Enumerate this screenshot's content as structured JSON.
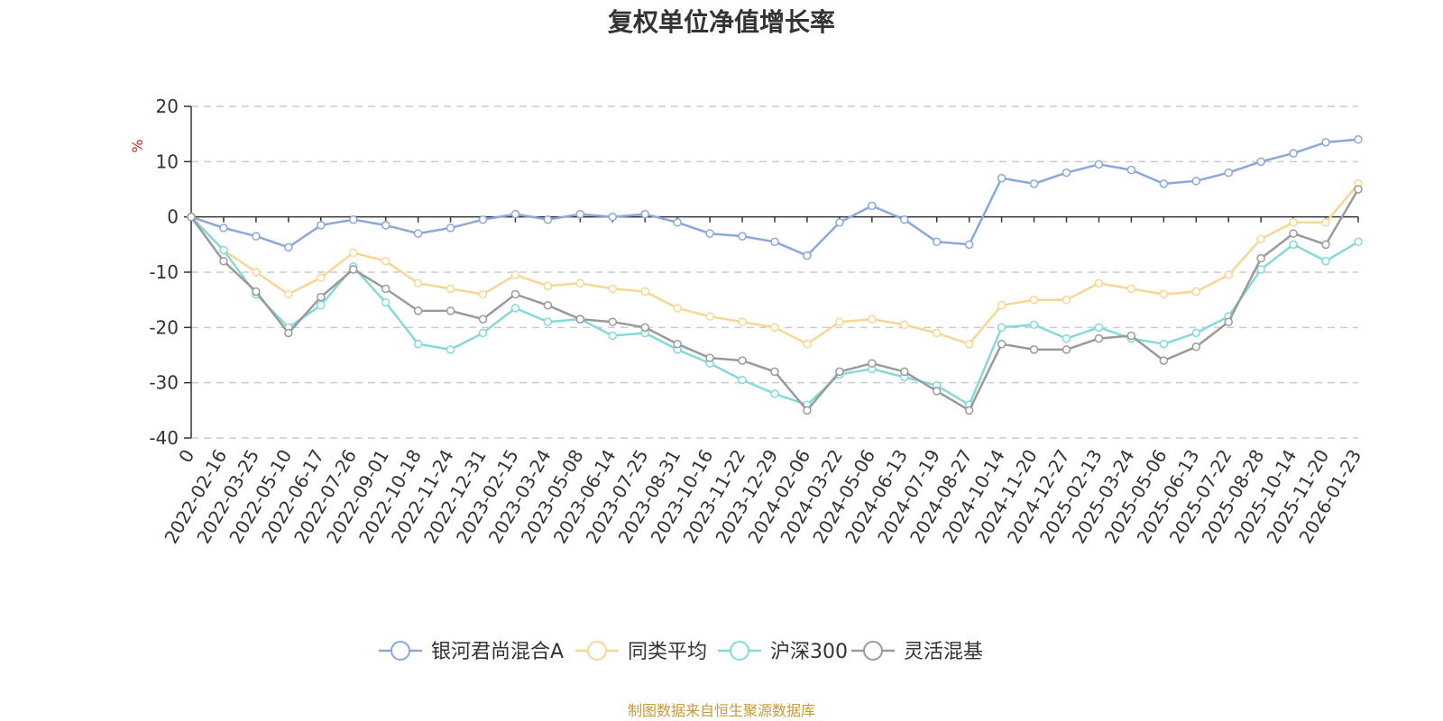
{
  "chart_data": {
    "type": "line",
    "title": "复权单位净值增长率",
    "ylabel": "%",
    "xlabel": "",
    "ylim": [
      -40,
      20
    ],
    "yticks": [
      20,
      10,
      0,
      -10,
      -20,
      -30,
      -40
    ],
    "grid": true,
    "legend_position": "bottom-center",
    "source": "制图数据来自恒生聚源数据库",
    "x": [
      "0",
      "2022-02-16",
      "2022-03-25",
      "2022-05-10",
      "2022-06-17",
      "2022-07-26",
      "2022-09-01",
      "2022-10-18",
      "2022-11-24",
      "2022-12-31",
      "2023-02-15",
      "2023-03-24",
      "2023-05-08",
      "2023-06-14",
      "2023-07-25",
      "2023-08-31",
      "2023-10-16",
      "2023-11-22",
      "2023-12-29",
      "2024-02-06",
      "2024-03-22",
      "2024-05-06",
      "2024-06-13",
      "2024-07-19",
      "2024-08-27",
      "2024-10-14",
      "2024-11-20",
      "2024-12-27",
      "2025-02-13",
      "2025-03-24",
      "2025-05-06",
      "2025-06-13",
      "2025-07-22",
      "2025-08-28",
      "2025-10-14",
      "2025-11-20",
      "2026-01-23"
    ],
    "series": [
      {
        "name": "银河君尚混合A",
        "color": "#8aa8d8",
        "values": [
          0,
          -2,
          -3.5,
          -5.5,
          -1.5,
          -0.5,
          -1.5,
          -3,
          -2,
          -0.5,
          0.5,
          -0.5,
          0.5,
          0,
          0.5,
          -1,
          -3,
          -3.5,
          -4.5,
          -7,
          -1,
          2,
          -0.5,
          -4.5,
          -5,
          7,
          6,
          8,
          9.5,
          8.5,
          6,
          6.5,
          8,
          10,
          11.5,
          13.5,
          14
        ]
      },
      {
        "name": "同类平均",
        "color": "#f8d693",
        "values": [
          0,
          -6,
          -10,
          -14,
          -11,
          -6.5,
          -8,
          -12,
          -13,
          -14,
          -10.5,
          -12.5,
          -12,
          -13,
          -13.5,
          -16.5,
          -18,
          -19,
          -20,
          -23,
          -19,
          -18.5,
          -19.5,
          -21,
          -23,
          -16,
          -15,
          -15,
          -12,
          -13,
          -14,
          -13.5,
          -10.5,
          -4,
          -1,
          -1,
          6
        ]
      },
      {
        "name": "沪深300",
        "color": "#86d9d9",
        "values": [
          0,
          -6,
          -14,
          -20,
          -16,
          -9,
          -15.5,
          -23,
          -24,
          -21,
          -16.5,
          -19,
          -18.5,
          -21.5,
          -21,
          -24,
          -26.5,
          -29.5,
          -32,
          -34,
          -28.5,
          -27.5,
          -29,
          -30.5,
          -34,
          -20,
          -19.5,
          -22,
          -20,
          -22,
          -23,
          -21,
          -18,
          -9.5,
          -5,
          -8,
          -4.5
        ]
      },
      {
        "name": "灵活混基",
        "color": "#9a9a9a",
        "values": [
          0,
          -8,
          -13.5,
          -21,
          -14.5,
          -9.5,
          -13,
          -17,
          -17,
          -18.5,
          -14,
          -16,
          -18.5,
          -19,
          -20,
          -23,
          -25.5,
          -26,
          -28,
          -35,
          -28,
          -26.5,
          -28,
          -31.5,
          -35,
          -23,
          -24,
          -24,
          -22,
          -21.5,
          -26,
          -23.5,
          -19,
          -7.5,
          -3,
          -5,
          5
        ]
      }
    ]
  }
}
